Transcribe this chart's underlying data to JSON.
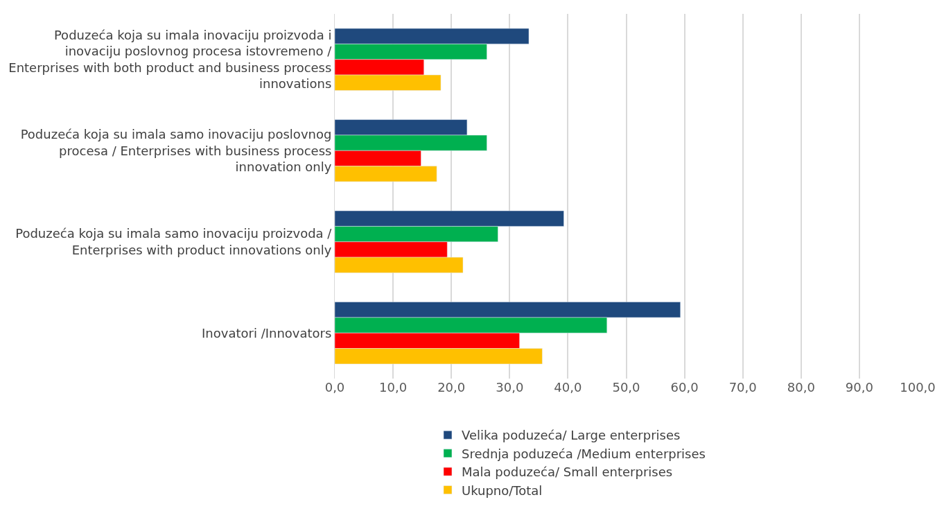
{
  "chart_data": {
    "type": "bar",
    "orientation": "horizontal",
    "categories": [
      "Poduzeća koja su imala inovaciju proizvoda i inovaciju poslovnog procesa istovremeno / Enterprises with both product and business process innovations",
      "Poduzeća koja su imala samo inovaciju poslovnog procesa / Enterprises with business process innovation only",
      "Poduzeća koja su imala samo inovaciju proizvoda / Enterprises with product innovations only",
      "Inovatori /Innovators"
    ],
    "series": [
      {
        "name": "Velika poduzeća/ Large enterprises",
        "color": "#1f497d",
        "values": [
          33.3,
          22.7,
          39.3,
          59.3
        ]
      },
      {
        "name": "Srednja poduzeća /Medium enterprises",
        "color": "#00b050",
        "values": [
          26.1,
          26.1,
          28.0,
          46.7
        ]
      },
      {
        "name": "Mala poduzeća/ Small enterprises",
        "color": "#ff0000",
        "values": [
          15.3,
          14.8,
          19.3,
          31.7
        ]
      },
      {
        "name": "Ukupno/Total",
        "color": "#ffc000",
        "values": [
          18.2,
          17.5,
          22.0,
          35.6
        ]
      }
    ],
    "xlim": [
      0,
      100
    ],
    "xticks": [
      {
        "value": 0,
        "label": "0,0"
      },
      {
        "value": 10,
        "label": "10,0"
      },
      {
        "value": 20,
        "label": "20,0"
      },
      {
        "value": 30,
        "label": "30,0"
      },
      {
        "value": 40,
        "label": "40,0"
      },
      {
        "value": 50,
        "label": "50,0"
      },
      {
        "value": 60,
        "label": "60,0"
      },
      {
        "value": 70,
        "label": "70,0"
      },
      {
        "value": 80,
        "label": "80,0"
      },
      {
        "value": 90,
        "label": "90,0"
      },
      {
        "value": 100,
        "label": "100,0"
      }
    ],
    "grid": "x",
    "legend": "bottom"
  }
}
